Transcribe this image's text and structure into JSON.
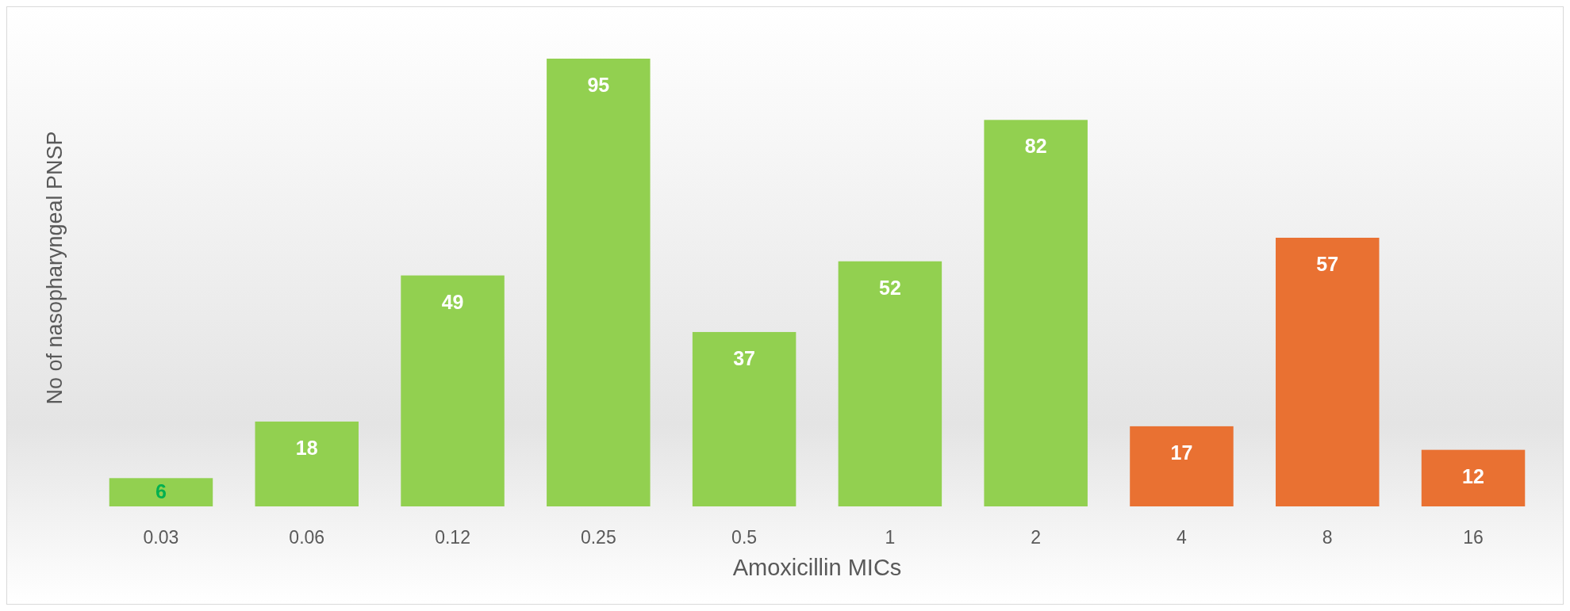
{
  "chart_data": {
    "type": "bar",
    "xlabel": "Amoxicillin MICs",
    "ylabel": "No of nasopharyngeal PNSP",
    "categories": [
      "0.03",
      "0.06",
      "0.12",
      "0.25",
      "0.5",
      "1",
      "2",
      "4",
      "8",
      "16"
    ],
    "values": [
      6,
      18,
      49,
      95,
      37,
      52,
      82,
      17,
      57,
      12
    ],
    "colors": [
      "#92d050",
      "#92d050",
      "#92d050",
      "#92d050",
      "#92d050",
      "#92d050",
      "#92d050",
      "#e97132",
      "#e97132",
      "#e97132"
    ],
    "data_labels": true
  }
}
